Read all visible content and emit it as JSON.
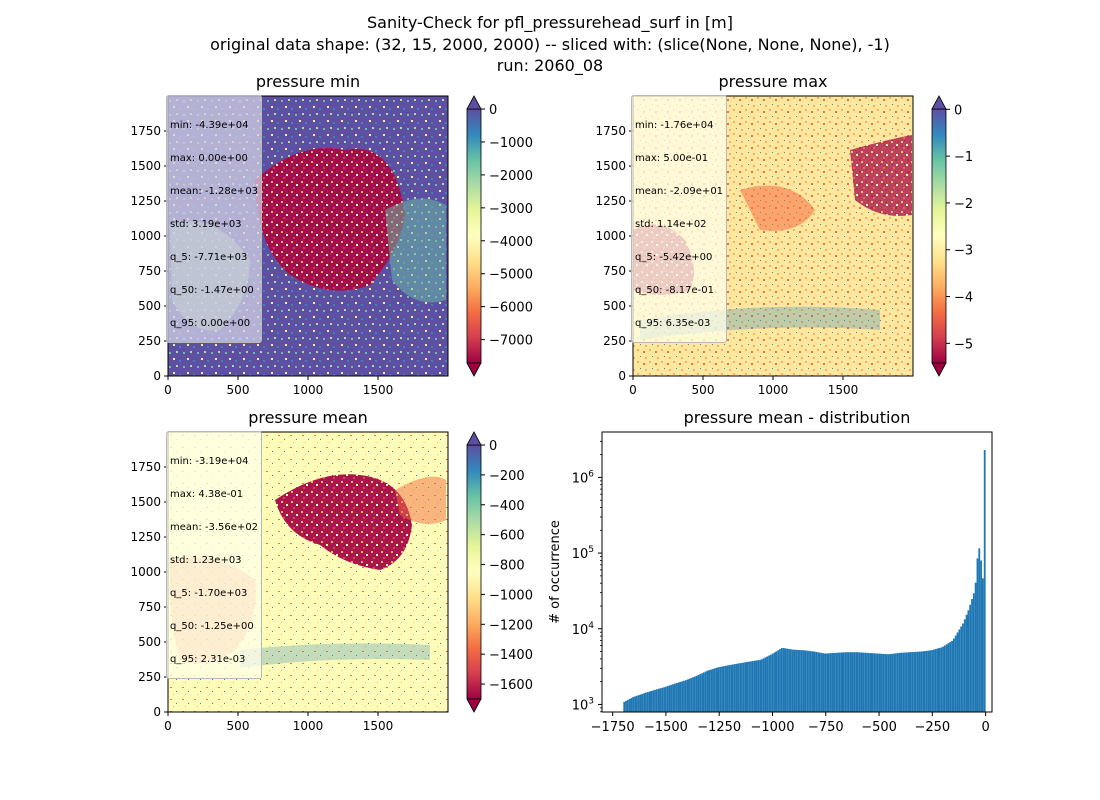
{
  "figure": {
    "suptitle_line1": "Sanity-Check for pfl_pressurehead_surf in [m]",
    "suptitle_line2": "original data shape: (32, 15, 2000, 2000) -- sliced with: (slice(None, None, None), -1)",
    "suptitle_line3": "run: 2060_08"
  },
  "panels": {
    "min": {
      "title": "pressure min",
      "stats": [
        "min: -4.39e+04",
        "max: 0.00e+00",
        "mean: -1.28e+03",
        "std: 3.19e+03",
        "q_5: -7.71e+03",
        "q_50: -1.47e+00",
        "q_95: 0.00e+00"
      ]
    },
    "max": {
      "title": "pressure max",
      "stats": [
        "min: -1.76e+04",
        "max: 5.00e-01",
        "mean: -2.09e+01",
        "std: 1.14e+02",
        "q_5: -5.42e+00",
        "q_50: -8.17e-01",
        "q_95: 6.35e-03"
      ]
    },
    "mean": {
      "title": "pressure mean",
      "stats": [
        "min: -3.19e+04",
        "max: 4.38e-01",
        "mean: -3.56e+02",
        "std: 1.23e+03",
        "q_5: -1.70e+03",
        "q_50: -1.25e+00",
        "q_95: 2.31e-03"
      ]
    },
    "dist": {
      "title": "pressure mean - distribution",
      "ylabel": "# of occurrence"
    }
  },
  "chart_data": [
    {
      "type": "heatmap",
      "title": "pressure min",
      "colormap": "Spectral",
      "xlim": [
        0,
        2000
      ],
      "ylim": [
        0,
        2000
      ],
      "x_ticks": [
        0,
        500,
        1000,
        1500
      ],
      "y_ticks": [
        0,
        250,
        500,
        750,
        1000,
        1250,
        1500,
        1750
      ],
      "colorbar": {
        "range": [
          -7710,
          0
        ],
        "ticks": [
          "0",
          "−1000",
          "−2000",
          "−3000",
          "−4000",
          "−5000",
          "−6000",
          "−7000"
        ],
        "tick_values": [
          0,
          -1000,
          -2000,
          -3000,
          -4000,
          -5000,
          -6000,
          -7000
        ],
        "extend": "both"
      }
    },
    {
      "type": "heatmap",
      "title": "pressure max",
      "colormap": "Spectral",
      "xlim": [
        0,
        2000
      ],
      "ylim": [
        0,
        2000
      ],
      "x_ticks": [
        0,
        500,
        1000,
        1500
      ],
      "y_ticks": [
        0,
        250,
        500,
        750,
        1000,
        1250,
        1500,
        1750
      ],
      "colorbar": {
        "range": [
          -5.42,
          0.00635
        ],
        "ticks": [
          "0",
          "−1",
          "−2",
          "−3",
          "−4",
          "−5"
        ],
        "tick_values": [
          0,
          -1,
          -2,
          -3,
          -4,
          -5
        ],
        "extend": "both"
      }
    },
    {
      "type": "heatmap",
      "title": "pressure mean",
      "colormap": "Spectral",
      "xlim": [
        0,
        2000
      ],
      "ylim": [
        0,
        2000
      ],
      "x_ticks": [
        0,
        500,
        1000,
        1500
      ],
      "y_ticks": [
        0,
        250,
        500,
        750,
        1000,
        1250,
        1500,
        1750
      ],
      "colorbar": {
        "range": [
          -1700,
          0.00231
        ],
        "ticks": [
          "0",
          "−200",
          "−400",
          "−600",
          "−800",
          "−1000",
          "−1200",
          "−1400",
          "−1600"
        ],
        "tick_values": [
          0,
          -200,
          -400,
          -600,
          -800,
          -1000,
          -1200,
          -1400,
          -1600
        ],
        "extend": "both"
      }
    },
    {
      "type": "bar",
      "subtype": "histogram",
      "title": "pressure mean - distribution",
      "ylabel": "# of occurrence",
      "y_scale": "log",
      "xlim": [
        -1800,
        30
      ],
      "ylim_log10": [
        2.9,
        6.6
      ],
      "x_ticks": [
        -1750,
        -1500,
        -1250,
        -1000,
        -750,
        -500,
        -250,
        0
      ],
      "x_tick_labels": [
        "−1750",
        "−1500",
        "−1250",
        "−1000",
        "−750",
        "−500",
        "−250",
        "0"
      ],
      "y_ticks": [
        1000,
        10000,
        100000,
        1000000
      ],
      "y_tick_labels": [
        "10^3",
        "10^4",
        "10^5",
        "10^6"
      ],
      "color": "#1f77b4",
      "bin_range": [
        -1700,
        0
      ],
      "shape_points": [
        [
          -1700,
          1050
        ],
        [
          -1650,
          1250
        ],
        [
          -1600,
          1400
        ],
        [
          -1550,
          1550
        ],
        [
          -1500,
          1700
        ],
        [
          -1450,
          1900
        ],
        [
          -1400,
          2100
        ],
        [
          -1350,
          2400
        ],
        [
          -1300,
          2800
        ],
        [
          -1250,
          3100
        ],
        [
          -1200,
          3300
        ],
        [
          -1150,
          3500
        ],
        [
          -1100,
          3700
        ],
        [
          -1050,
          3900
        ],
        [
          -1000,
          4600
        ],
        [
          -950,
          5600
        ],
        [
          -900,
          5300
        ],
        [
          -850,
          5200
        ],
        [
          -800,
          5000
        ],
        [
          -750,
          4700
        ],
        [
          -700,
          4800
        ],
        [
          -650,
          4900
        ],
        [
          -600,
          4900
        ],
        [
          -550,
          4800
        ],
        [
          -500,
          4700
        ],
        [
          -450,
          4600
        ],
        [
          -400,
          4800
        ],
        [
          -350,
          4900
        ],
        [
          -300,
          5000
        ],
        [
          -250,
          5200
        ],
        [
          -200,
          5700
        ],
        [
          -150,
          7000
        ],
        [
          -100,
          12000
        ],
        [
          -75,
          18000
        ],
        [
          -50,
          30000
        ],
        [
          -40,
          45000
        ],
        [
          -30,
          130000
        ],
        [
          -20,
          100000
        ],
        [
          -10,
          47000
        ],
        [
          -5,
          45000
        ],
        [
          0,
          2300000
        ]
      ]
    }
  ]
}
